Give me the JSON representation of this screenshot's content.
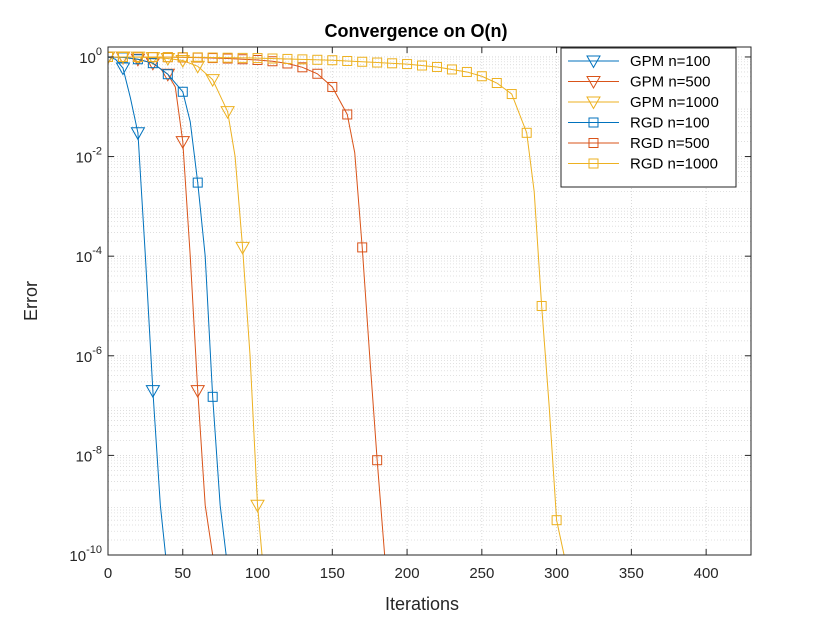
{
  "chart_data": {
    "type": "line",
    "title": "Convergence on O(n)",
    "xlabel": "Iterations",
    "ylabel": "Error",
    "xlim": [
      0,
      430
    ],
    "ylim_log10": [
      -10,
      0.2
    ],
    "yscale": "log",
    "grid": true,
    "minor_grid": true,
    "legend_position": "top-right",
    "x_ticks": [
      0,
      50,
      100,
      150,
      200,
      250,
      300,
      350,
      400
    ],
    "x_tick_labels": [
      "0",
      "50",
      "100",
      "150",
      "200",
      "250",
      "300",
      "350",
      "400"
    ],
    "y_ticks_exp": [
      0,
      -2,
      -4,
      -6,
      -8,
      -10
    ],
    "y_tick_labels": [
      {
        "base": "10",
        "exp": "0"
      },
      {
        "base": "10",
        "exp": "-2"
      },
      {
        "base": "10",
        "exp": "-4"
      },
      {
        "base": "10",
        "exp": "-6"
      },
      {
        "base": "10",
        "exp": "-8"
      },
      {
        "base": "10",
        "exp": "-10"
      }
    ],
    "series": [
      {
        "name": "GPM n=100",
        "color": "#0072BD",
        "marker": "triangle-down",
        "x": [
          0,
          5,
          10,
          15,
          20,
          25,
          30,
          35,
          38.5
        ],
        "y": [
          1,
          0.9,
          0.6,
          0.15,
          0.03,
          0.0001,
          2e-07,
          1e-09,
          1e-10
        ],
        "marker_x": [
          0,
          10,
          20,
          30
        ]
      },
      {
        "name": "GPM n=500",
        "color": "#D95319",
        "marker": "triangle-down",
        "x": [
          0,
          10,
          20,
          30,
          40,
          45,
          50,
          55,
          60,
          65,
          70
        ],
        "y": [
          1,
          0.98,
          0.9,
          0.75,
          0.45,
          0.25,
          0.02,
          0.0001,
          2e-07,
          1e-09,
          1e-10
        ],
        "marker_x": [
          0,
          10,
          20,
          30,
          40,
          50,
          60
        ]
      },
      {
        "name": "GPM n=1000",
        "color": "#EDB120",
        "marker": "triangle-down",
        "x": [
          0,
          10,
          20,
          30,
          40,
          50,
          60,
          70,
          80,
          85,
          90,
          95,
          100,
          103
        ],
        "y": [
          1,
          1,
          0.99,
          0.97,
          0.93,
          0.85,
          0.65,
          0.35,
          0.08,
          0.01,
          0.00015,
          1e-06,
          1e-09,
          1e-10
        ],
        "marker_x": [
          0,
          10,
          20,
          30,
          40,
          50,
          60,
          70,
          80,
          90,
          100
        ]
      },
      {
        "name": "RGD n=100",
        "color": "#0072BD",
        "marker": "square",
        "x": [
          0,
          10,
          20,
          30,
          40,
          50,
          55,
          60,
          65,
          70,
          75,
          79
        ],
        "y": [
          1,
          0.98,
          0.9,
          0.75,
          0.45,
          0.2,
          0.05,
          0.003,
          0.0001,
          1.5e-07,
          1e-09,
          1e-10
        ],
        "marker_x": [
          0,
          10,
          20,
          30,
          40,
          50,
          60,
          70
        ]
      },
      {
        "name": "RGD n=500",
        "color": "#D95319",
        "marker": "square",
        "x": [
          0,
          20,
          40,
          60,
          80,
          100,
          110,
          120,
          130,
          140,
          150,
          160,
          165,
          170,
          175,
          180,
          185
        ],
        "y": [
          1,
          1,
          0.99,
          0.97,
          0.93,
          0.87,
          0.82,
          0.74,
          0.62,
          0.46,
          0.25,
          0.07,
          0.012,
          0.00015,
          1e-06,
          8e-09,
          1e-10
        ],
        "marker_x": [
          0,
          10,
          20,
          30,
          40,
          50,
          60,
          70,
          80,
          90,
          100,
          110,
          120,
          130,
          140,
          150,
          160,
          170,
          180
        ]
      },
      {
        "name": "RGD n=1000",
        "color": "#EDB120",
        "marker": "square",
        "x": [
          0,
          50,
          100,
          150,
          200,
          220,
          240,
          250,
          260,
          270,
          280,
          285,
          290,
          295,
          300,
          305
        ],
        "y": [
          1,
          0.99,
          0.95,
          0.86,
          0.72,
          0.63,
          0.5,
          0.41,
          0.3,
          0.18,
          0.03,
          0.002,
          1e-05,
          1e-07,
          5e-10,
          1e-10
        ],
        "marker_x": [
          0,
          10,
          20,
          30,
          40,
          50,
          60,
          70,
          80,
          90,
          100,
          110,
          120,
          130,
          140,
          150,
          160,
          170,
          180,
          190,
          200,
          210,
          220,
          230,
          240,
          250,
          260,
          270,
          280,
          290,
          300
        ]
      }
    ]
  }
}
